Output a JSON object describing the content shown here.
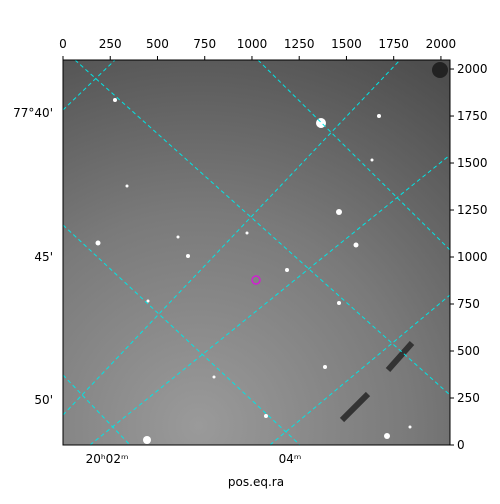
{
  "chart_data": {
    "type": "image",
    "xlabel": "pos.eq.ra",
    "xlim": [
      0,
      2048
    ],
    "xticks": [
      0,
      250,
      500,
      750,
      1000,
      1250,
      1500,
      1750,
      2000
    ],
    "ylim": [
      0,
      2048
    ],
    "yticks": [
      0,
      250,
      500,
      750,
      1000,
      1250,
      1500,
      1750,
      2000
    ],
    "ra_labels": [
      "20ʰ02ᵐ",
      "04ᵐ"
    ],
    "dec_labels": [
      "77°40'",
      "45'",
      "50'"
    ],
    "grid_color": "#00e5e5"
  }
}
